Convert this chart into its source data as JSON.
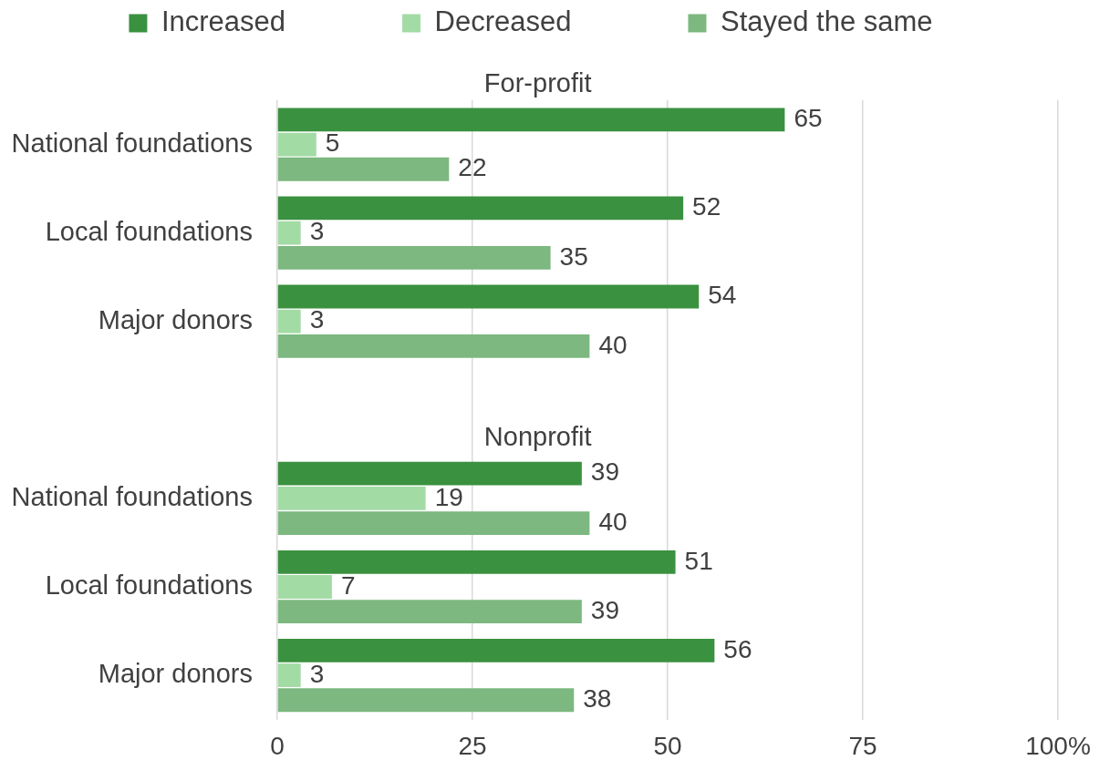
{
  "chart_data": {
    "type": "bar",
    "orientation": "horizontal",
    "categories": [
      "National foundations",
      "Local foundations",
      "Major donors",
      null,
      "National foundations",
      "Local foundations",
      "Major donors"
    ],
    "series": [
      {
        "name": "Increased",
        "color": "#3a913f",
        "values": [
          65,
          52,
          54,
          null,
          39,
          51,
          56
        ]
      },
      {
        "name": "Decreased",
        "color": "#a3dba5",
        "values": [
          5,
          3,
          3,
          null,
          19,
          7,
          3
        ]
      },
      {
        "name": "Stayed the same",
        "color": "#7cb87f",
        "values": [
          22,
          35,
          40,
          null,
          40,
          39,
          38
        ]
      }
    ],
    "xlim": [
      0,
      100
    ],
    "xticks": [
      0,
      25,
      50,
      75,
      {
        "value": 100,
        "label": "100%"
      }
    ],
    "grid": "x",
    "legend": "top",
    "data_labels": true,
    "annotations": [
      "For-profit",
      "Nonprofit"
    ]
  }
}
